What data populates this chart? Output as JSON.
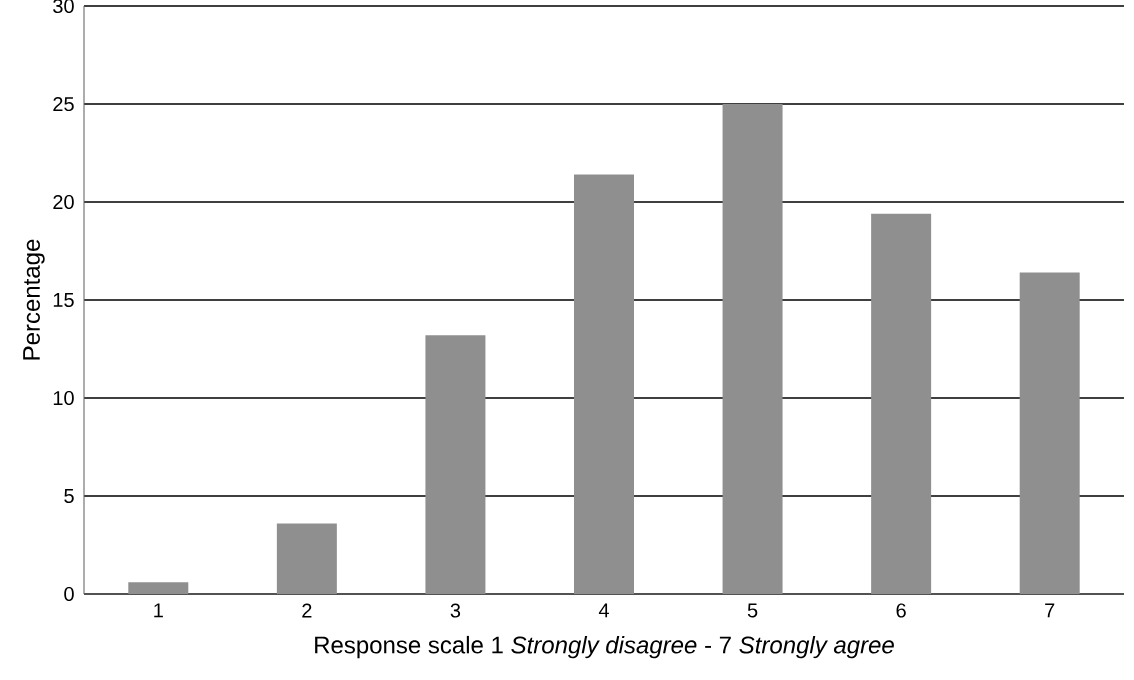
{
  "chart_data": {
    "type": "bar",
    "xlabel": "Response scale 1 *Strongly disagree*  - 7 *Strongly agree*",
    "ylabel": "Percentage",
    "categories": [
      "1",
      "2",
      "3",
      "4",
      "5",
      "6",
      "7"
    ],
    "values": [
      0.6,
      3.6,
      13.2,
      21.4,
      25,
      19.4,
      16.4
    ],
    "color": "#8f8f8f",
    "ylim": [
      0,
      30
    ],
    "yticks": [
      0,
      5,
      10,
      15,
      20,
      25,
      30
    ],
    "grid": "y"
  }
}
